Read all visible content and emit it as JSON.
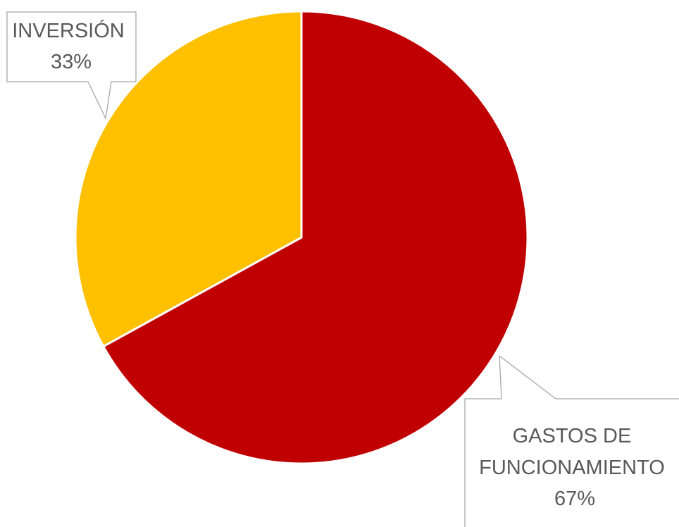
{
  "chart_data": {
    "type": "pie",
    "slices": [
      {
        "label": "GASTOS DE FUNCIONAMIENTO",
        "value": 67,
        "display": "67%",
        "color": "#C00000"
      },
      {
        "label": "INVERSIÓN",
        "value": 33,
        "display": "33%",
        "color": "#FFC000"
      }
    ],
    "label_lines": {
      "slice_0": [
        "GASTOS DE",
        "FUNCIONAMIENTO",
        "67%"
      ],
      "slice_1": [
        "INVERSIÓN",
        "33%"
      ]
    },
    "start": "12 o'clock",
    "direction": "clockwise",
    "legend": "none",
    "leader_line_color": "#A6A6A6"
  }
}
